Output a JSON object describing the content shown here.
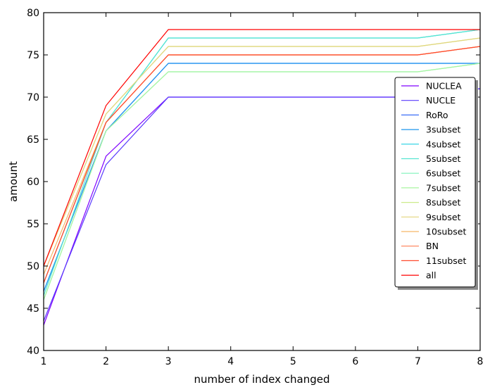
{
  "chart_data": {
    "type": "line",
    "title": "",
    "xlabel": "number of index changed",
    "ylabel": "amount",
    "x": [
      1,
      2,
      3,
      4,
      5,
      6,
      7,
      8
    ],
    "xlim": [
      1,
      8
    ],
    "ylim": [
      40,
      80
    ],
    "xticks": [
      1,
      2,
      3,
      4,
      5,
      6,
      7,
      8
    ],
    "yticks": [
      40,
      45,
      50,
      55,
      60,
      65,
      70,
      75,
      80
    ],
    "grid": false,
    "legend": "right",
    "series": [
      {
        "name": "NUCLEA",
        "color": "#7f00ff",
        "values": [
          43,
          63,
          70,
          70,
          70,
          70,
          70,
          71
        ]
      },
      {
        "name": "NUCLE",
        "color": "#5a3cfd",
        "values": [
          43.5,
          62,
          70,
          70,
          70,
          70,
          70,
          71
        ]
      },
      {
        "name": "RoRo",
        "color": "#3b6ff7",
        "values": [
          47,
          66,
          74,
          74,
          74,
          74,
          74,
          74
        ]
      },
      {
        "name": "3subset",
        "color": "#1e96ee",
        "values": [
          47,
          66,
          74,
          74,
          74,
          74,
          74,
          74
        ]
      },
      {
        "name": "4subset",
        "color": "#22d1e2",
        "values": [
          48,
          67,
          77,
          77,
          77,
          77,
          77,
          78
        ]
      },
      {
        "name": "5subset",
        "color": "#56e5d1",
        "values": [
          46.5,
          67,
          77,
          77,
          77,
          77,
          77,
          78
        ]
      },
      {
        "name": "6subset",
        "color": "#7ff3ba",
        "values": [
          46,
          66,
          73,
          73,
          73,
          73,
          73,
          74
        ]
      },
      {
        "name": "7subset",
        "color": "#a8f5a0",
        "values": [
          46,
          66,
          73,
          73,
          73,
          73,
          73,
          74
        ]
      },
      {
        "name": "8subset",
        "color": "#cdeb8b",
        "values": [
          50,
          68,
          76,
          76,
          76,
          76,
          76,
          77
        ]
      },
      {
        "name": "9subset",
        "color": "#e2d57c",
        "values": [
          50,
          68,
          76,
          76,
          76,
          76,
          76,
          77
        ]
      },
      {
        "name": "10subset",
        "color": "#f5b667",
        "values": [
          49,
          67,
          75,
          75,
          75,
          75,
          75,
          76
        ]
      },
      {
        "name": "BN",
        "color": "#ff7d52",
        "values": [
          48,
          67,
          75,
          75,
          75,
          75,
          75,
          76
        ]
      },
      {
        "name": "11subset",
        "color": "#ff4a2e",
        "values": [
          48,
          67,
          75,
          75,
          75,
          75,
          75,
          76
        ]
      },
      {
        "name": "all",
        "color": "#ff0000",
        "values": [
          50,
          69,
          78,
          78,
          78,
          78,
          78,
          78
        ]
      }
    ]
  }
}
